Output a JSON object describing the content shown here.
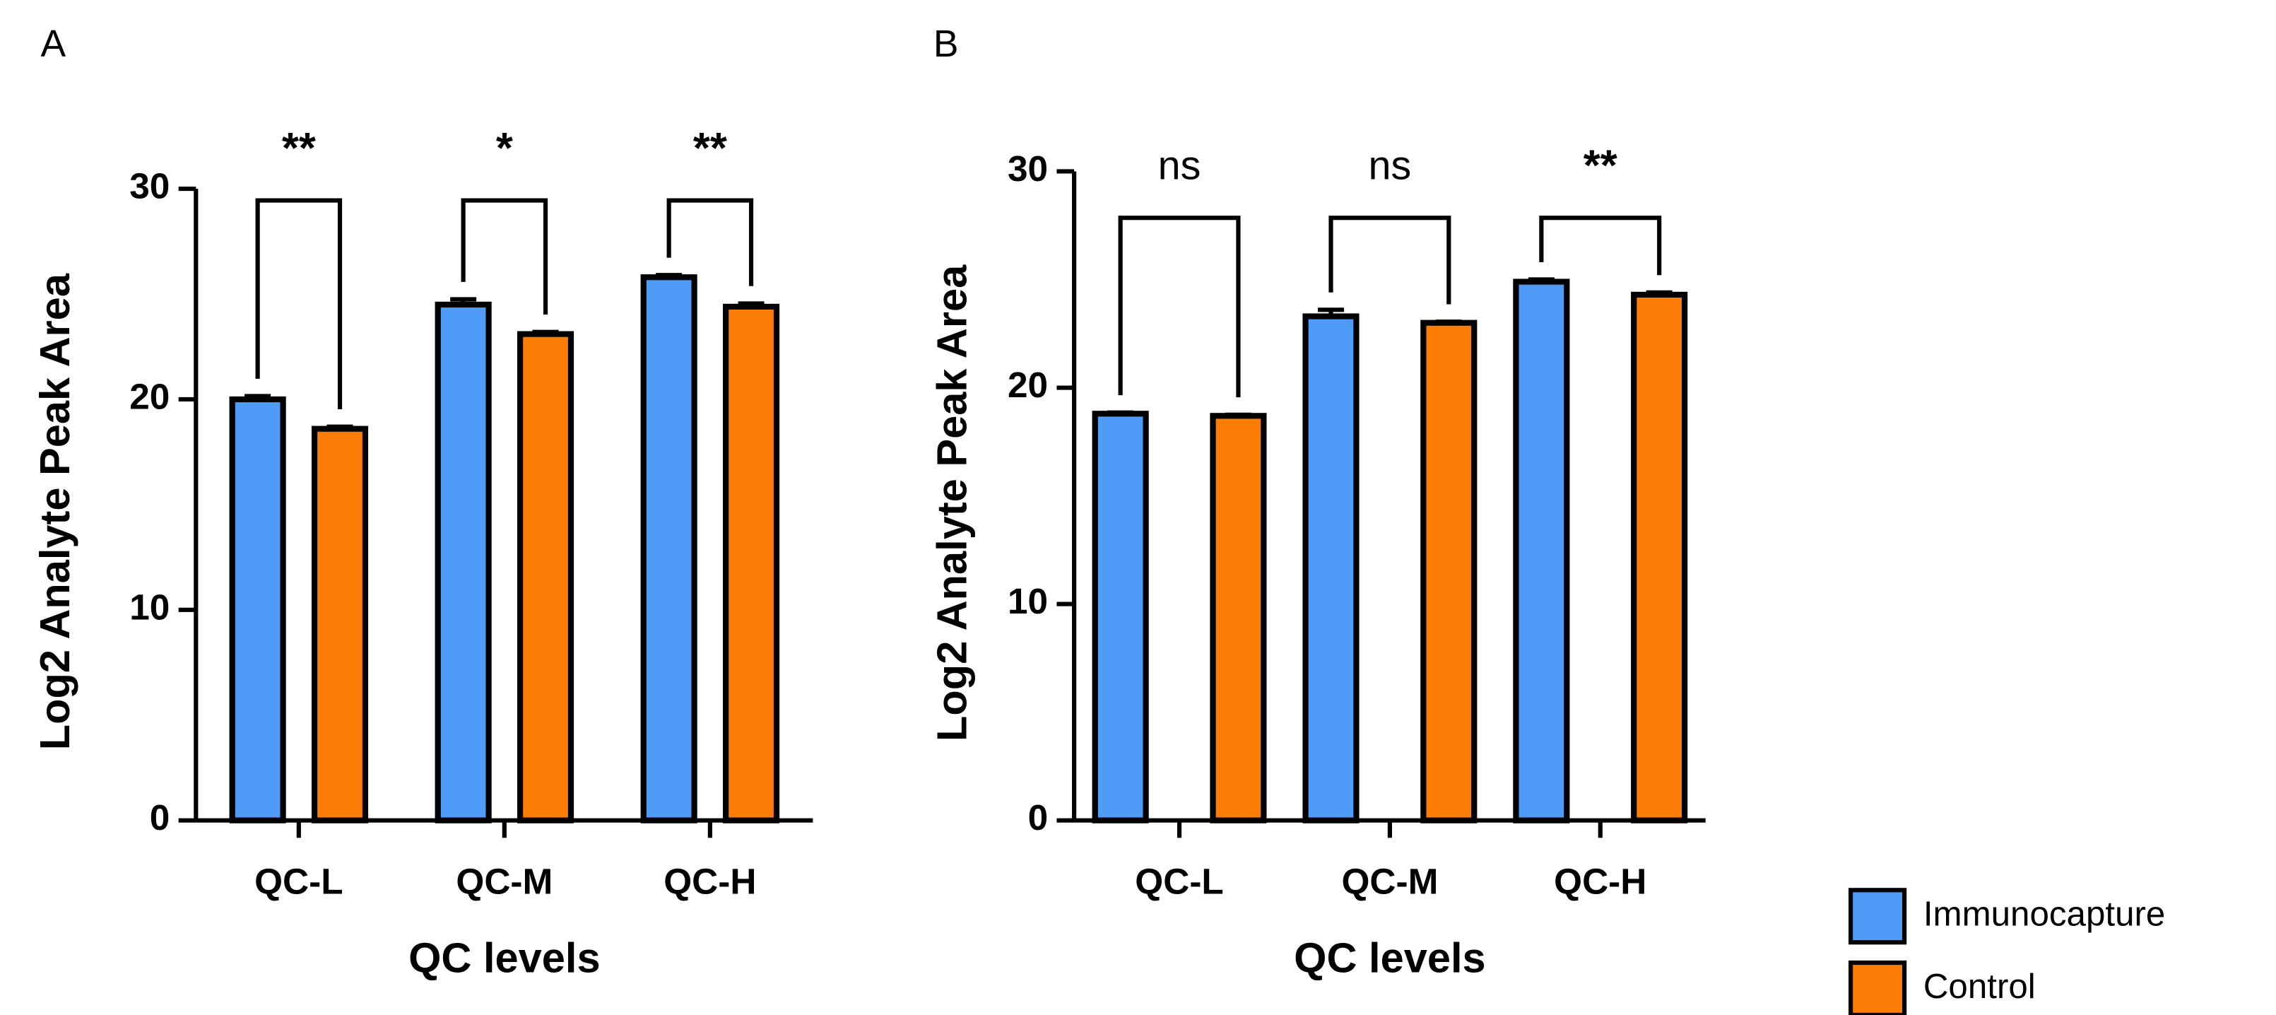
{
  "chart_data": [
    {
      "type": "bar",
      "panel": "A",
      "x_label": "QC levels",
      "y_label": "Log2 Analyte Peak Area",
      "categories": [
        "QC-L",
        "QC-M",
        "QC-H"
      ],
      "series": [
        {
          "color": "#4f9cf6",
          "values": [
            20.0,
            24.5,
            25.8
          ],
          "errors": [
            0.15,
            0.25,
            0.1
          ]
        },
        {
          "color": "#fb7d07",
          "values": [
            18.6,
            23.1,
            24.4
          ],
          "errors": [
            0.1,
            0.1,
            0.15
          ]
        }
      ],
      "significance": [
        "**",
        "*",
        "**"
      ],
      "ylim": [
        0,
        30
      ],
      "yticks": [
        0,
        10,
        20,
        30
      ]
    },
    {
      "type": "bar",
      "panel": "B",
      "x_label": "QC levels",
      "y_label": "Log2 Analyte Peak Area",
      "categories": [
        "QC-L",
        "QC-M",
        "QC-H"
      ],
      "series": [
        {
          "color": "#4f9cf6",
          "values": [
            18.8,
            23.3,
            24.9
          ],
          "errors": [
            0.05,
            0.3,
            0.1
          ]
        },
        {
          "color": "#fb7d07",
          "values": [
            18.7,
            23.0,
            24.3
          ],
          "errors": [
            0.05,
            0.05,
            0.1
          ]
        }
      ],
      "significance": [
        "ns",
        "ns",
        "**"
      ],
      "ylim": [
        0,
        30
      ],
      "yticks": [
        0,
        10,
        20,
        30
      ]
    }
  ],
  "legend": [
    {
      "name": "Immunocapture",
      "color": "#4f9cf6"
    },
    {
      "name": "Control",
      "color": "#fb7d07"
    }
  ]
}
